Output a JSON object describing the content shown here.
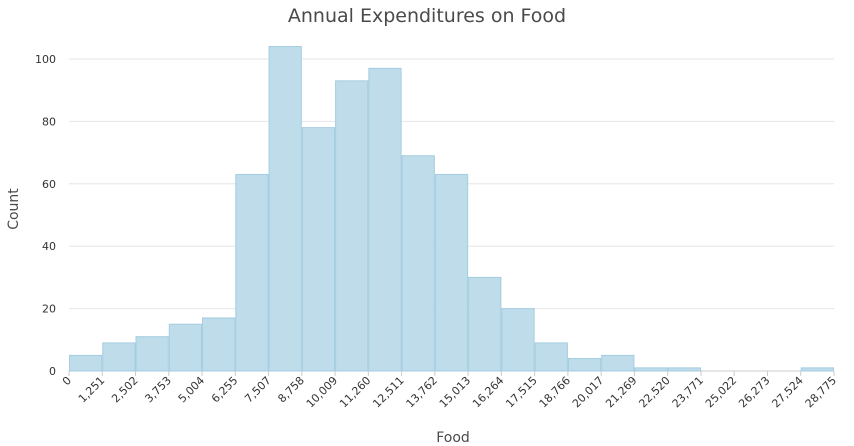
{
  "chart_data": {
    "type": "bar",
    "title": "Annual Expenditures on Food",
    "xlabel": "Food",
    "ylabel": "Count",
    "ylim": [
      0,
      100
    ],
    "yticks": [
      "0",
      "20",
      "40",
      "60",
      "80",
      "100"
    ],
    "bin_edges": [
      "0",
      "1,251",
      "2,502",
      "3,753",
      "5,004",
      "6,255",
      "7,507",
      "8,758",
      "10,009",
      "11,260",
      "12,511",
      "13,762",
      "15,013",
      "16,264",
      "17,515",
      "18,766",
      "20,017",
      "21,269",
      "22,520",
      "23,771",
      "25,022",
      "26,273",
      "27,524",
      "28,775"
    ],
    "values": [
      5,
      9,
      11,
      15,
      17,
      63,
      104,
      78,
      93,
      97,
      69,
      63,
      30,
      20,
      9,
      4,
      5,
      1,
      1,
      0,
      0,
      0,
      1
    ],
    "grid": true,
    "legend": "none",
    "colors": {
      "bar_fill": "#bfdcea",
      "bar_stroke": "#a4cde0",
      "grid": "#e6e6e6"
    }
  }
}
